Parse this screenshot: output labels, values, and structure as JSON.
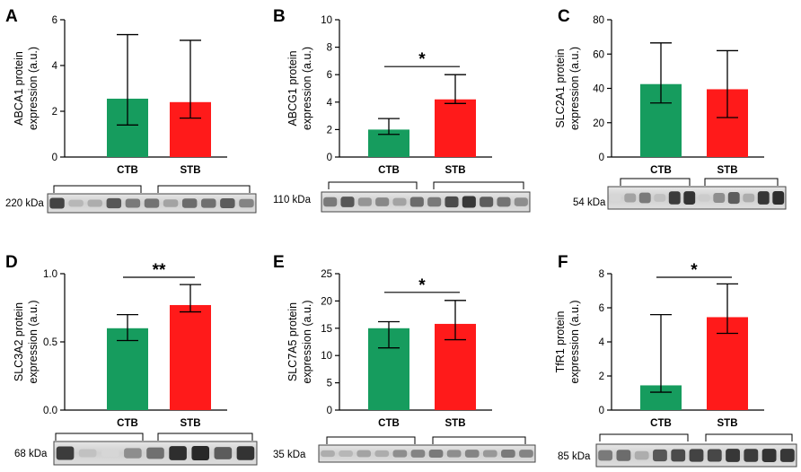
{
  "chart_data": [
    {
      "type": "bar",
      "panel_label": "A",
      "ylabel_lines": [
        "ABCA1 protein",
        "expression (a.u.)"
      ],
      "categories": [
        "CTB",
        "STB"
      ],
      "values": [
        2.55,
        2.4
      ],
      "error_low": [
        1.4,
        1.7
      ],
      "error_high": [
        5.35,
        5.1
      ],
      "ylim": [
        0,
        6
      ],
      "yticks": [
        "0",
        "2",
        "4",
        "6"
      ],
      "significance": "",
      "kda_label": "220 kDa",
      "blot_bands": [
        0.82,
        0.25,
        0.3,
        0.72,
        0.55,
        0.58,
        0.35,
        0.62,
        0.6,
        0.7,
        0.5
      ]
    },
    {
      "type": "bar",
      "panel_label": "B",
      "ylabel_lines": [
        "ABCG1 protein",
        "expression (a.u.)"
      ],
      "categories": [
        "CTB",
        "STB"
      ],
      "values": [
        2.0,
        4.2
      ],
      "error_low": [
        1.65,
        3.9
      ],
      "error_high": [
        2.8,
        6.0
      ],
      "ylim": [
        0,
        10
      ],
      "yticks": [
        "0",
        "2",
        "4",
        "6",
        "8",
        "10"
      ],
      "significance": "*",
      "kda_label": "110 kDa",
      "blot_bands": [
        0.55,
        0.72,
        0.42,
        0.48,
        0.35,
        0.62,
        0.55,
        0.78,
        0.88,
        0.7,
        0.58,
        0.45
      ]
    },
    {
      "type": "bar",
      "panel_label": "C",
      "ylabel_lines": [
        "SLC2A1 protein",
        "expression (a.u.)"
      ],
      "categories": [
        "CTB",
        "STB"
      ],
      "values": [
        42.5,
        39.5
      ],
      "error_low": [
        31.5,
        23.0
      ],
      "error_high": [
        66.5,
        62.0
      ],
      "ylim": [
        0,
        80
      ],
      "yticks": [
        "0",
        "20",
        "40",
        "60",
        "80"
      ],
      "significance": "",
      "kda_label": "54 kDa",
      "blot_bands": [
        0.1,
        0.35,
        0.55,
        0.2,
        0.85,
        0.9,
        0.15,
        0.45,
        0.7,
        0.3,
        0.88,
        0.92
      ]
    },
    {
      "type": "bar",
      "panel_label": "D",
      "ylabel_lines": [
        "SLC3A2 protein",
        "expression (a.u.)"
      ],
      "categories": [
        "CTB",
        "STB"
      ],
      "values": [
        0.6,
        0.77
      ],
      "error_low": [
        0.51,
        0.72
      ],
      "error_high": [
        0.7,
        0.92
      ],
      "ylim": [
        0,
        1.0
      ],
      "yticks": [
        "0.0",
        "0.5",
        "1.0"
      ],
      "significance": "**",
      "kda_label": "68 kDa",
      "blot_bands": [
        0.85,
        0.2,
        0.1,
        0.45,
        0.6,
        0.92,
        0.95,
        0.7,
        0.9
      ]
    },
    {
      "type": "bar",
      "panel_label": "E",
      "ylabel_lines": [
        "SLC7A5 protein",
        "expression (a.u.)"
      ],
      "categories": [
        "CTB",
        "STB"
      ],
      "values": [
        15.0,
        15.8
      ],
      "error_low": [
        11.4,
        12.9
      ],
      "error_high": [
        16.2,
        20.1
      ],
      "ylim": [
        0,
        25
      ],
      "yticks": [
        "0",
        "5",
        "10",
        "15",
        "20",
        "25"
      ],
      "significance": "*",
      "kda_label": "35 kDa",
      "blot_bands": [
        0.3,
        0.25,
        0.35,
        0.3,
        0.45,
        0.5,
        0.55,
        0.45,
        0.5,
        0.4,
        0.55,
        0.5
      ]
    },
    {
      "type": "bar",
      "panel_label": "F",
      "ylabel_lines": [
        "TfR1 protein",
        "expression (a.u.)"
      ],
      "categories": [
        "CTB",
        "STB"
      ],
      "values": [
        1.45,
        5.45
      ],
      "error_low": [
        1.05,
        4.5
      ],
      "error_high": [
        5.6,
        7.4
      ],
      "ylim": [
        0,
        8
      ],
      "yticks": [
        "0",
        "2",
        "4",
        "6",
        "8"
      ],
      "significance": "*",
      "kda_label": "85 kDa",
      "blot_bands": [
        0.55,
        0.62,
        0.3,
        0.72,
        0.78,
        0.82,
        0.8,
        0.88,
        0.85,
        0.9,
        0.88
      ]
    }
  ],
  "colors": {
    "ctb": "#169c5e",
    "stb": "#ff1a1a",
    "axis": "#000000"
  }
}
